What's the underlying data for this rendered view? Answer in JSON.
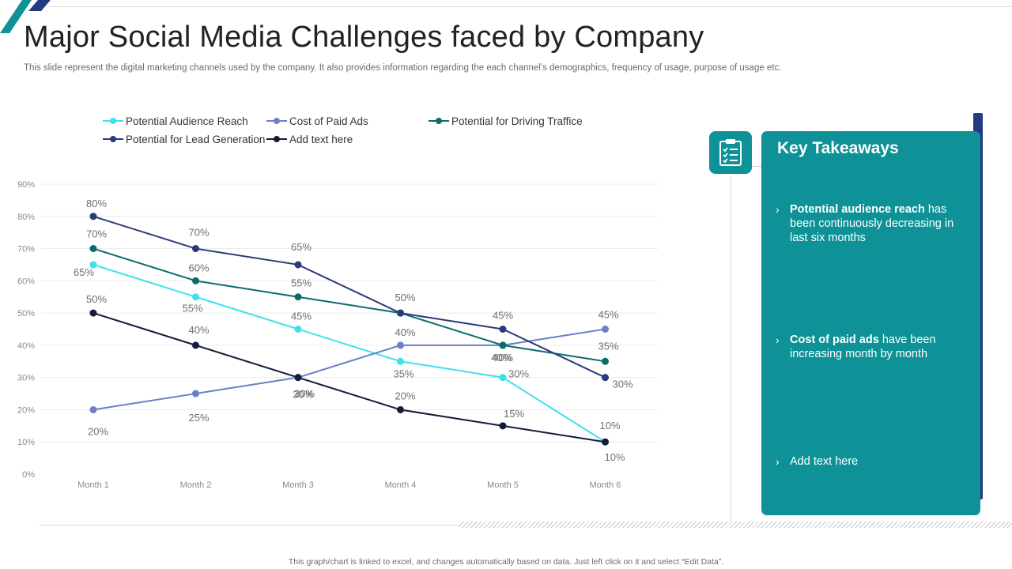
{
  "slide": {
    "title": "Major Social Media Challenges faced by Company",
    "subtitle": "This slide represent the digital marketing channels used by the company. It also provides information regarding the each channel’s demographics, frequency of usage, purpose of usage etc.",
    "footer": "This graph/chart is linked to excel, and changes automatically based on data. Just left click on it and select “Edit Data”."
  },
  "icons": {
    "panel_icon": "clipboard-checklist-icon"
  },
  "colors": {
    "accent": "#0e9297",
    "dark_accent": "#263a80"
  },
  "takeaways": {
    "title": "Key Takeaways",
    "items": [
      {
        "bold": "Potential audience reach",
        "rest": " has been continuously decreasing in last six months"
      },
      {
        "bold": "Cost of paid ads",
        "rest": " have been increasing month by month"
      },
      {
        "bold": "",
        "rest": "Add text here"
      }
    ]
  },
  "chart_data": {
    "type": "line",
    "title": "",
    "xlabel": "",
    "ylabel": "",
    "categories": [
      "Month 1",
      "Month 2",
      "Month 3",
      "Month 4",
      "Month 5",
      "Month 6"
    ],
    "y_ticks": [
      "0%",
      "10%",
      "20%",
      "30%",
      "40%",
      "50%",
      "60%",
      "70%",
      "80%",
      "90%"
    ],
    "ylim": [
      0,
      90
    ],
    "grid": true,
    "legend": "top",
    "series": [
      {
        "name": "Potential Audience Reach",
        "color": "#3ee0ec",
        "values": [
          65,
          55,
          45,
          35,
          30,
          10
        ],
        "labels": [
          "65%",
          "55%",
          "45%",
          "35%",
          "30%",
          "10%"
        ]
      },
      {
        "name": "Cost of Paid Ads",
        "color": "#6b7fc7",
        "values": [
          20,
          25,
          30,
          40,
          40,
          45
        ],
        "labels": [
          "20%",
          "25%",
          "30%",
          "40%",
          "40%",
          "45%"
        ]
      },
      {
        "name": "Potential for Driving Traffice",
        "color": "#0d6b6b",
        "values": [
          70,
          60,
          55,
          50,
          40,
          35
        ],
        "labels": [
          "70%",
          "60%",
          "55%",
          "50%",
          "40%",
          "35%"
        ]
      },
      {
        "name": "Potential for Lead Generation",
        "color": "#2b3a78",
        "values": [
          80,
          70,
          65,
          50,
          45,
          30
        ],
        "labels": [
          "80%",
          "70%",
          "65%",
          "50%",
          "45%",
          "30%"
        ]
      },
      {
        "name": "Add text here",
        "color": "#141c3a",
        "values": [
          50,
          40,
          30,
          20,
          15,
          10
        ],
        "labels": [
          "50%",
          "40%",
          "30%",
          "20%",
          "15%",
          "10%"
        ]
      }
    ]
  }
}
